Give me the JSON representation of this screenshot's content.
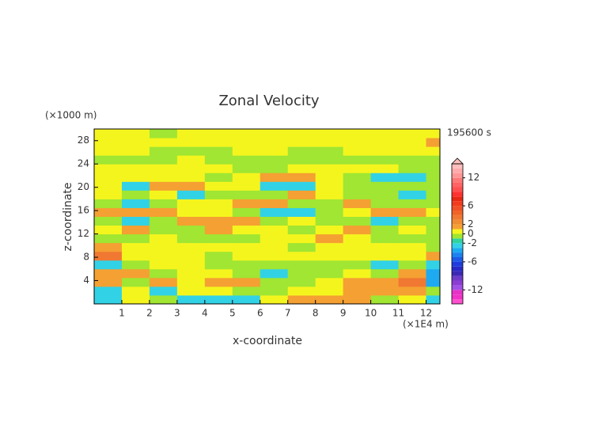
{
  "chart_data": {
    "type": "contour",
    "title": "Zonal Velocity",
    "y_unit": "(×1000 m)",
    "x_unit": "(×1E4 m)",
    "time_label": "195600 s",
    "xlabel": "x-coordinate",
    "ylabel": "z-coordinate",
    "xlim": [
      0,
      12.5
    ],
    "ylim": [
      0,
      30
    ],
    "xticks": [
      1,
      2,
      3,
      4,
      5,
      6,
      7,
      8,
      9,
      10,
      11,
      12
    ],
    "yticks": [
      4,
      8,
      12,
      16,
      20,
      24,
      28
    ],
    "x": [
      0.5,
      1.5,
      2.5,
      3.5,
      4.5,
      5.5,
      6.5,
      7.5,
      8.5,
      9.5,
      10.5,
      11.5,
      12.5
    ],
    "y": [
      0.75,
      2.25,
      3.75,
      5.25,
      6.75,
      8.25,
      9.75,
      11.25,
      12.75,
      14.25,
      15.75,
      17.25,
      18.75,
      20.25,
      21.75,
      23.25,
      24.75,
      26.25,
      27.75,
      29.25
    ],
    "z": [
      [
        -3,
        0.5,
        -0.5,
        -2.5,
        -2.5,
        -2.5,
        0.5,
        1.5,
        1.5,
        1.5,
        -0.5,
        0.5,
        -2.5
      ],
      [
        -2.5,
        0.5,
        -2.5,
        0.5,
        0.5,
        -0.5,
        -0.5,
        0.5,
        0.5,
        1.5,
        1.5,
        1.5,
        -0.5
      ],
      [
        1.5,
        -0.5,
        1.5,
        0.5,
        1.5,
        1.5,
        -0.5,
        -0.5,
        0.5,
        1.5,
        1.5,
        3,
        -4
      ],
      [
        1.5,
        1.5,
        -0.5,
        0.5,
        0.5,
        -0.5,
        -2.5,
        -0.5,
        -0.5,
        0.5,
        -0.5,
        1.5,
        -4
      ],
      [
        -2.5,
        -0.5,
        0.5,
        0.5,
        -0.5,
        -0.5,
        -0.5,
        -0.5,
        -0.5,
        -0.5,
        -2.5,
        -0.5,
        -2.5
      ],
      [
        3,
        0.5,
        0.5,
        0.5,
        -0.5,
        0.5,
        0.5,
        0.5,
        0.5,
        0.5,
        0.5,
        0.5,
        1.5
      ],
      [
        1.5,
        0.5,
        0.5,
        0.5,
        0.5,
        0.5,
        0.5,
        -0.5,
        0.5,
        0.5,
        0.5,
        0.5,
        -0.5
      ],
      [
        -0.5,
        -0.5,
        0.5,
        -0.5,
        -0.5,
        -0.5,
        0.5,
        0.5,
        1.5,
        0.5,
        -0.5,
        -0.5,
        -0.5
      ],
      [
        0.5,
        1.5,
        -0.5,
        -0.5,
        1.5,
        0.5,
        0.5,
        -0.5,
        0.5,
        1.5,
        -0.5,
        0.5,
        -0.5
      ],
      [
        -0.5,
        -2.5,
        -0.5,
        1.5,
        1.5,
        1.5,
        -0.5,
        0.5,
        -0.5,
        -0.5,
        -2.5,
        -0.5,
        -0.5
      ],
      [
        1.5,
        1.5,
        1.5,
        0.5,
        0.5,
        -0.5,
        -2.5,
        -2.5,
        -0.5,
        0.5,
        1.5,
        1.5,
        0.5
      ],
      [
        -0.5,
        -2.5,
        -0.5,
        0.5,
        0.5,
        1.5,
        1.5,
        -0.5,
        -0.5,
        1.5,
        -0.5,
        -0.5,
        -0.5
      ],
      [
        0.5,
        -0.5,
        0.5,
        -2.5,
        -0.5,
        -0.5,
        -0.5,
        1.5,
        0.5,
        -0.5,
        -0.5,
        -2.5,
        -0.5
      ],
      [
        0.5,
        -2.5,
        1.5,
        1.5,
        0.5,
        0.5,
        -2.5,
        -2.5,
        0.5,
        -0.5,
        -0.5,
        -0.5,
        -0.5
      ],
      [
        0.5,
        0.5,
        0.5,
        0.5,
        -0.5,
        0.5,
        1.5,
        1.5,
        0.5,
        -0.5,
        -2.5,
        -2.5,
        -0.5
      ],
      [
        0.5,
        0.5,
        0.5,
        0.5,
        0.5,
        -0.5,
        -0.5,
        0.5,
        0.5,
        0.5,
        0.5,
        -0.5,
        -0.5
      ],
      [
        -0.5,
        -0.5,
        -0.5,
        0.5,
        -0.5,
        -0.5,
        -0.5,
        -0.5,
        -0.5,
        -0.5,
        -0.5,
        -0.5,
        -0.5
      ],
      [
        0.5,
        0.5,
        -0.5,
        -0.5,
        -0.5,
        0.5,
        0.5,
        -0.5,
        -0.5,
        0.5,
        0.5,
        0.5,
        0.5
      ],
      [
        0.5,
        0.5,
        0.5,
        0.5,
        0.5,
        0.5,
        0.5,
        0.5,
        0.5,
        0.5,
        0.5,
        0.5,
        1.5
      ],
      [
        0.5,
        0.5,
        -0.5,
        0.5,
        0.5,
        0.5,
        0.5,
        0.5,
        0.5,
        0.5,
        0.5,
        0.5,
        0.5
      ]
    ],
    "levels": [
      -15,
      -14,
      -13,
      -12,
      -11,
      -10,
      -9,
      -8,
      -7,
      -6,
      -5,
      -4,
      -3,
      -2,
      -1,
      0,
      1,
      2,
      3,
      4,
      5,
      6,
      7,
      8,
      9,
      10,
      11,
      12,
      13,
      14,
      15
    ],
    "colors": [
      "#ff50d0",
      "#f032c8",
      "#e632c8",
      "#a050e6",
      "#8c3cd2",
      "#6e3cc8",
      "#3c28b4",
      "#2828c8",
      "#1e3cdc",
      "#1e5ae6",
      "#1e82f0",
      "#1eaaf0",
      "#32d2e6",
      "#32d2a0",
      "#a0e632",
      "#f5f51e",
      "#f5a032",
      "#f08c32",
      "#f07832",
      "#f06428",
      "#f05028",
      "#f03c1e",
      "#e62814",
      "#ff3232",
      "#ff5050",
      "#ff6464",
      "#ff7878",
      "#ff9696",
      "#ffaaaa",
      "#ffbebe"
    ],
    "colorbar_ticks": [
      -12,
      -6,
      -2,
      0,
      2,
      6,
      12
    ],
    "extend": "max"
  }
}
